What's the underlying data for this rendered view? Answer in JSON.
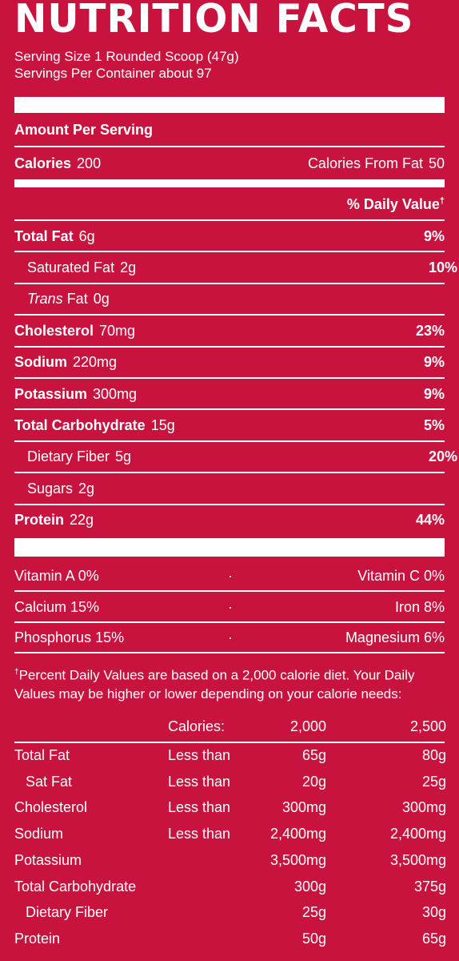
{
  "title": "NUTRITION FACTS",
  "serving_size": "Serving Size 1 Rounded Scoop (47g)",
  "servings_per_container": "Servings Per Container about 97",
  "amount_per_serving": "Amount Per Serving",
  "calories": {
    "label": "Calories",
    "value": "200",
    "from_fat_label": "Calories From Fat",
    "from_fat_value": "50"
  },
  "daily_value_header": "% Daily Value",
  "dagger": "†",
  "nutrients": [
    {
      "label": "Total Fat",
      "value": "6g",
      "dv": "9%",
      "bold": true
    },
    {
      "label": "Saturated Fat",
      "value": "2g",
      "dv": "10%",
      "bold": false
    },
    {
      "label": "Trans",
      "label_suffix": "Fat",
      "value": "0g",
      "dv": "",
      "bold": false
    },
    {
      "label": "Cholesterol",
      "value": "70mg",
      "dv": "23%",
      "bold": true
    },
    {
      "label": "Sodium",
      "value": "220mg",
      "dv": "9%",
      "bold": true
    },
    {
      "label": "Potassium",
      "value": "300mg",
      "dv": "9%",
      "bold": true
    },
    {
      "label": "Total Carbohydrate",
      "value": "15g",
      "dv": "5%",
      "bold": true
    },
    {
      "label": "Dietary Fiber",
      "value": "5g",
      "dv": "20%",
      "bold": false
    },
    {
      "label": "Sugars",
      "value": "2g",
      "dv": "",
      "bold": false
    },
    {
      "label": "Protein",
      "value": "22g",
      "dv": "44%",
      "bold": true
    }
  ],
  "vitamins": [
    {
      "left": "Vitamin A  0%",
      "sep": "·",
      "right": "Vitamin C  0%"
    },
    {
      "left": "Calcium  15%",
      "sep": "·",
      "right": "Iron  8%"
    },
    {
      "left": "Phosphorus  15%",
      "sep": "·",
      "right": "Magnesium  6%"
    }
  ],
  "footnote": "Percent Daily Values are based on a 2,000 calorie diet. Your Daily Values may be higher or lower depending on your calorie needs:",
  "footnote_table": {
    "header": [
      "Calories:",
      "2,000",
      "2,500"
    ],
    "rows": [
      [
        "Total Fat",
        "Less than",
        "65g",
        "80g"
      ],
      [
        "Sat Fat",
        "Less than",
        "20g",
        "25g"
      ],
      [
        "Cholesterol",
        "Less than",
        "300mg",
        "300mg"
      ],
      [
        "Sodium",
        "Less than",
        "2,400mg",
        "2,400mg"
      ],
      [
        "Potassium",
        "",
        "3,500mg",
        "3,500mg"
      ],
      [
        "Total Carbohydrate",
        "",
        "300g",
        "375g"
      ],
      [
        "Dietary Fiber",
        "",
        "25g",
        "30g"
      ],
      [
        "Protein",
        "",
        "50g",
        "65g"
      ]
    ]
  },
  "colors": {
    "background": "#c8133f",
    "foreground": "#ffffff"
  }
}
